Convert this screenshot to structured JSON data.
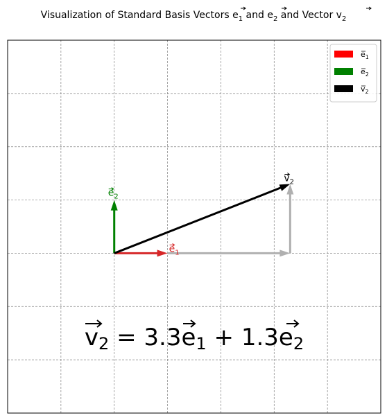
{
  "chart_data": {
    "type": "vector",
    "title": {
      "main": "Visualization of Standard Basis Vectors ",
      "e1_sym": "e",
      "e1_sub": "1",
      "and1": " and ",
      "e2_sym": "e",
      "e2_sub": "2",
      "and2": " and Vector ",
      "v_sym": "v",
      "v_sub": "2"
    },
    "xlim": [
      -2,
      5
    ],
    "ylim": [
      -3,
      4
    ],
    "grid": true,
    "legend_position": "top-right",
    "basis_vectors": [
      {
        "name": "e1",
        "sym": "e",
        "sub": "1",
        "x": 1,
        "y": 0,
        "color": "#d62728",
        "legend_color": "#ff0000"
      },
      {
        "name": "e2",
        "sym": "e",
        "sub": "2",
        "x": 0,
        "y": 1,
        "color": "#008000",
        "legend_color": "#008000"
      }
    ],
    "vector": {
      "name": "v2",
      "sym": "v",
      "sub": "2",
      "x": 3.3,
      "y": 1.3,
      "color": "#000000"
    },
    "component_color": "#b0b0b0",
    "legend": [
      {
        "sym": "e",
        "sub": "1",
        "color": "#ff0000"
      },
      {
        "sym": "e",
        "sub": "2",
        "color": "#008000"
      },
      {
        "sym": "v",
        "sub": "2",
        "color": "#000000"
      }
    ],
    "equation": {
      "lhs_sym": "v",
      "lhs_sub": "2",
      "eq": " = ",
      "c1": "3.3",
      "t1_sym": "e",
      "t1_sub": "1",
      "plus": " + ",
      "c2": "1.3",
      "t2_sym": "e",
      "t2_sub": "2"
    }
  }
}
